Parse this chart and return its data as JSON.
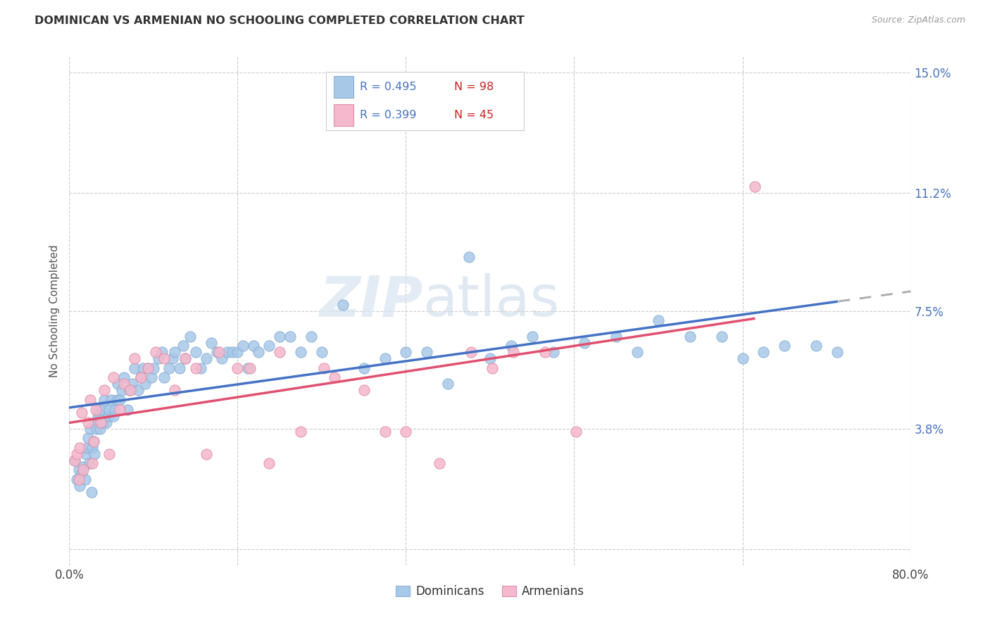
{
  "title": "DOMINICAN VS ARMENIAN NO SCHOOLING COMPLETED CORRELATION CHART",
  "source": "Source: ZipAtlas.com",
  "ylabel": "No Schooling Completed",
  "ytick_vals": [
    0.0,
    0.038,
    0.075,
    0.112,
    0.15
  ],
  "ytick_labels": [
    "",
    "3.8%",
    "7.5%",
    "11.2%",
    "15.0%"
  ],
  "xtick_vals": [
    0.0,
    0.16,
    0.32,
    0.48,
    0.64,
    0.8
  ],
  "xlim": [
    0.0,
    0.8
  ],
  "ylim": [
    -0.005,
    0.155
  ],
  "dominican_color": "#a8c8e8",
  "armenian_color": "#f5b8cc",
  "trend_dominican_color": "#4472c4",
  "trend_armenian_color": "#e05070",
  "legend_r_color": "#4472c4",
  "legend_n_color": "#cc2222",
  "watermark_zip": "ZIP",
  "watermark_atlas": "atlas",
  "dominican_x": [
    0.005,
    0.007,
    0.009,
    0.01,
    0.012,
    0.013,
    0.015,
    0.016,
    0.017,
    0.018,
    0.019,
    0.02,
    0.021,
    0.022,
    0.023,
    0.024,
    0.025,
    0.026,
    0.027,
    0.028,
    0.029,
    0.03,
    0.031,
    0.032,
    0.033,
    0.035,
    0.037,
    0.038,
    0.04,
    0.042,
    0.043,
    0.045,
    0.046,
    0.048,
    0.05,
    0.052,
    0.055,
    0.057,
    0.06,
    0.062,
    0.065,
    0.068,
    0.07,
    0.072,
    0.075,
    0.078,
    0.08,
    0.085,
    0.088,
    0.09,
    0.095,
    0.098,
    0.1,
    0.105,
    0.108,
    0.11,
    0.115,
    0.12,
    0.125,
    0.13,
    0.135,
    0.14,
    0.145,
    0.15,
    0.155,
    0.16,
    0.165,
    0.17,
    0.175,
    0.18,
    0.19,
    0.2,
    0.21,
    0.22,
    0.23,
    0.24,
    0.26,
    0.28,
    0.3,
    0.32,
    0.34,
    0.36,
    0.38,
    0.4,
    0.42,
    0.44,
    0.46,
    0.49,
    0.52,
    0.54,
    0.56,
    0.59,
    0.62,
    0.64,
    0.66,
    0.68,
    0.71,
    0.73
  ],
  "dominican_y": [
    0.028,
    0.022,
    0.025,
    0.02,
    0.024,
    0.026,
    0.022,
    0.03,
    0.032,
    0.035,
    0.027,
    0.038,
    0.018,
    0.032,
    0.034,
    0.03,
    0.04,
    0.038,
    0.042,
    0.044,
    0.038,
    0.042,
    0.044,
    0.04,
    0.047,
    0.04,
    0.042,
    0.044,
    0.047,
    0.042,
    0.044,
    0.047,
    0.052,
    0.047,
    0.05,
    0.054,
    0.044,
    0.05,
    0.052,
    0.057,
    0.05,
    0.054,
    0.057,
    0.052,
    0.057,
    0.054,
    0.057,
    0.06,
    0.062,
    0.054,
    0.057,
    0.06,
    0.062,
    0.057,
    0.064,
    0.06,
    0.067,
    0.062,
    0.057,
    0.06,
    0.065,
    0.062,
    0.06,
    0.062,
    0.062,
    0.062,
    0.064,
    0.057,
    0.064,
    0.062,
    0.064,
    0.067,
    0.067,
    0.062,
    0.067,
    0.062,
    0.077,
    0.057,
    0.06,
    0.062,
    0.062,
    0.052,
    0.092,
    0.06,
    0.064,
    0.067,
    0.062,
    0.065,
    0.067,
    0.062,
    0.072,
    0.067,
    0.067,
    0.06,
    0.062,
    0.064,
    0.064,
    0.062
  ],
  "armenian_x": [
    0.005,
    0.007,
    0.009,
    0.01,
    0.012,
    0.013,
    0.018,
    0.02,
    0.022,
    0.023,
    0.025,
    0.03,
    0.033,
    0.038,
    0.042,
    0.048,
    0.052,
    0.058,
    0.062,
    0.068,
    0.075,
    0.082,
    0.09,
    0.1,
    0.11,
    0.12,
    0.13,
    0.142,
    0.16,
    0.172,
    0.19,
    0.2,
    0.22,
    0.242,
    0.252,
    0.28,
    0.3,
    0.32,
    0.352,
    0.382,
    0.402,
    0.422,
    0.452,
    0.482,
    0.652
  ],
  "armenian_y": [
    0.028,
    0.03,
    0.022,
    0.032,
    0.043,
    0.025,
    0.04,
    0.047,
    0.027,
    0.034,
    0.044,
    0.04,
    0.05,
    0.03,
    0.054,
    0.044,
    0.052,
    0.05,
    0.06,
    0.054,
    0.057,
    0.062,
    0.06,
    0.05,
    0.06,
    0.057,
    0.03,
    0.062,
    0.057,
    0.057,
    0.027,
    0.062,
    0.037,
    0.057,
    0.054,
    0.05,
    0.037,
    0.037,
    0.027,
    0.062,
    0.057,
    0.062,
    0.062,
    0.037,
    0.114
  ]
}
